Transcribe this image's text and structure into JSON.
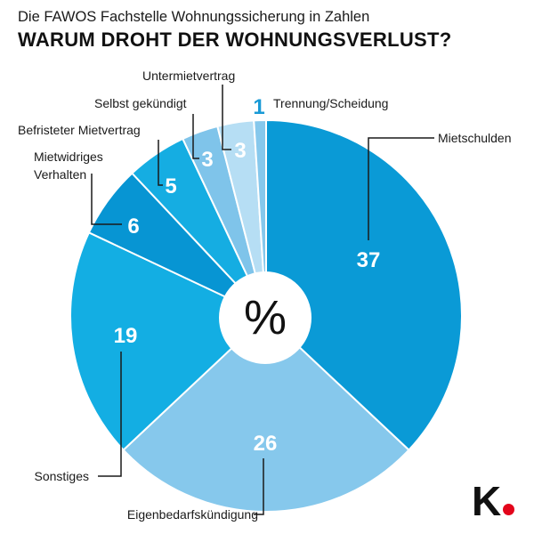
{
  "subtitle": "Die FAWOS Fachstelle Wohnungssicherung in Zahlen",
  "title": "WARUM DROHT DER WOHNUNGSVERLUST?",
  "center_label": "%",
  "logo": "K.",
  "chart_data": {
    "type": "pie",
    "unit": "%",
    "start": "12 o'clock, clockwise",
    "categories": [
      "Mietschulden",
      "Eigenbedarfskündigung",
      "Sonstiges",
      "Mietwidriges Verhalten",
      "Befristeter Mietvertrag",
      "Selbst gekündigt",
      "Untermietvertrag",
      "Trennung/Scheidung"
    ],
    "values": [
      37,
      26,
      19,
      6,
      5,
      3,
      3,
      1
    ],
    "colors": [
      "#0a9ad6",
      "#86c8ec",
      "#13aee3",
      "#0795d3",
      "#15ade2",
      "#7fc4ea",
      "#b6def4",
      "#86c8ec"
    ],
    "value_label_color": "#ffffff",
    "outside_value_color": "#1a9ad6"
  }
}
